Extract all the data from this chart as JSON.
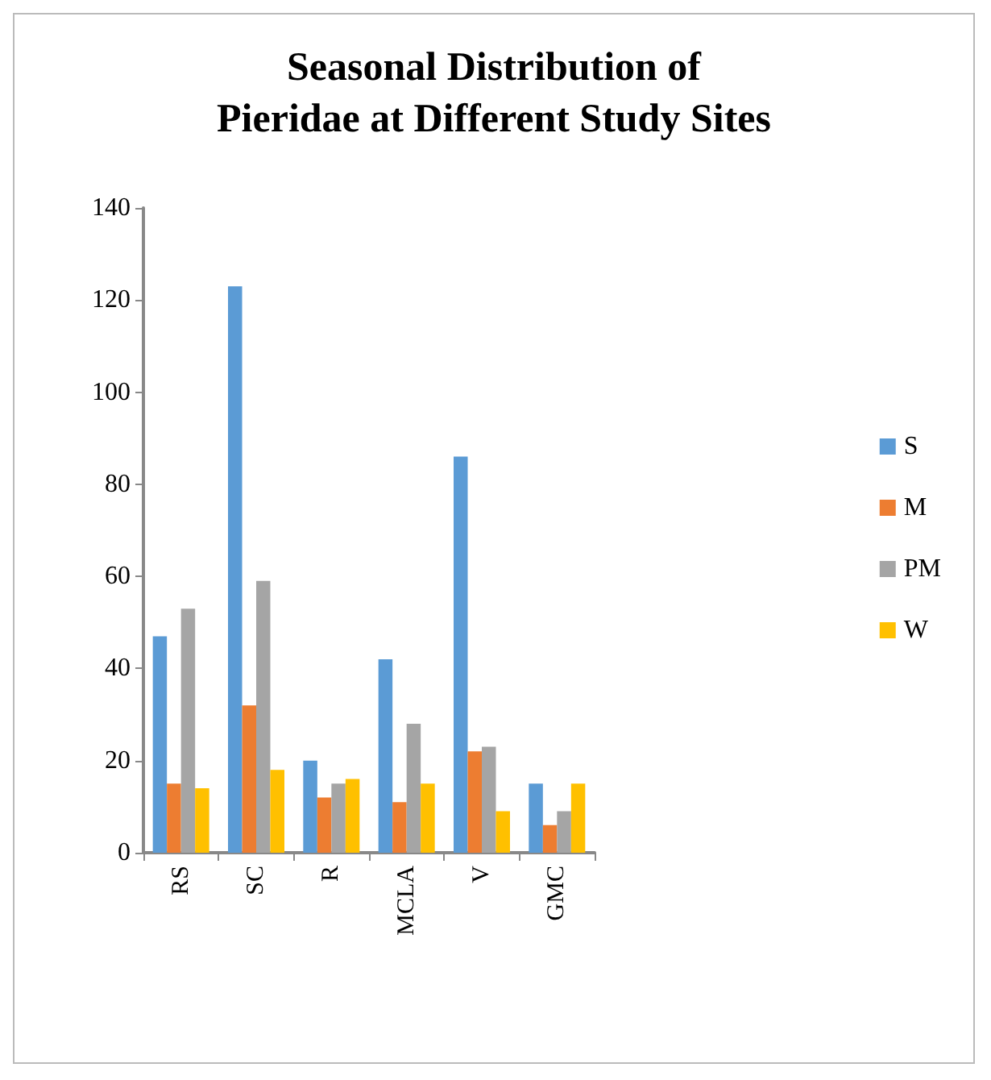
{
  "chart_data": {
    "type": "bar",
    "title": "Seasonal Distribution of\nPieridae at Different Study Sites",
    "categories": [
      "RS",
      "SC",
      "R",
      "MCLA",
      "V",
      "GMC"
    ],
    "series": [
      {
        "name": "S",
        "color": "#5b9bd5",
        "values": [
          47,
          123,
          20,
          42,
          86,
          15
        ]
      },
      {
        "name": "M",
        "color": "#ed7d31",
        "values": [
          15,
          32,
          12,
          11,
          22,
          6
        ]
      },
      {
        "name": "PM",
        "color": "#a5a5a5",
        "values": [
          53,
          59,
          15,
          28,
          23,
          9
        ]
      },
      {
        "name": "W",
        "color": "#ffc000",
        "values": [
          14,
          18,
          16,
          15,
          9,
          15
        ]
      }
    ],
    "ylim": [
      0,
      140
    ],
    "yticks": [
      0,
      20,
      40,
      60,
      80,
      100,
      120,
      140
    ],
    "grid": false,
    "legend": "right"
  }
}
